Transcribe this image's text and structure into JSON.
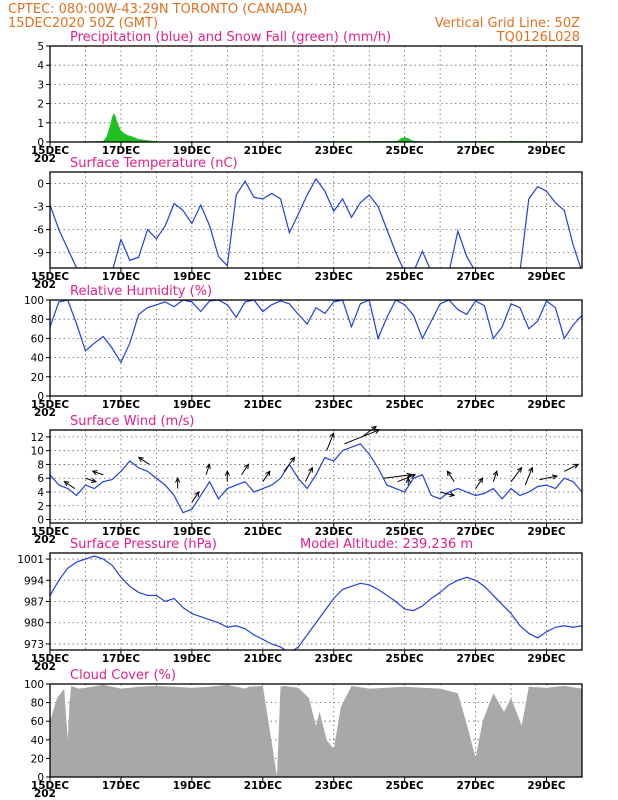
{
  "header": {
    "line1_left": "CPTEC:    080:00W-43:29N   TORONTO (CANADA)",
    "line2_left": "15DEC2020 50Z (GMT)",
    "line1_right": "Vertical Grid Line: 50Z",
    "line2_right": "TQ0126L028"
  },
  "x_tick_labels": [
    "15DEC",
    "17DEC",
    "19DEC",
    "21DEC",
    "23DEC",
    "25DEC",
    "27DEC",
    "29DEC"
  ],
  "x_sublabel": "202",
  "colors": {
    "header": "#e07020",
    "title": "#e0208a",
    "line": "#2040e0",
    "snow": "#20c020",
    "cloud": "#a8a8a8",
    "arrow": "#000000"
  },
  "chart_data": [
    {
      "id": "precip",
      "type": "area",
      "title": "Precipitation (blue) and Snow Fall (green) (mm/h)",
      "ylim": [
        0,
        5
      ],
      "yticks": [
        0,
        1,
        2,
        3,
        4,
        5
      ],
      "x": [
        0,
        1.5,
        1.6,
        1.7,
        1.75,
        1.8,
        1.85,
        1.9,
        2.0,
        2.1,
        2.2,
        2.3,
        2.5,
        2.8,
        3.0,
        5.0,
        9.8,
        9.9,
        10.0,
        10.1,
        10.2,
        10.5,
        13.5,
        13.7,
        15.0
      ],
      "series": [
        {
          "name": "Snow Fall",
          "color": "#20c020",
          "values": [
            0,
            0.05,
            0.3,
            0.9,
            1.3,
            1.5,
            1.35,
            1.0,
            0.6,
            0.45,
            0.35,
            0.3,
            0.15,
            0.08,
            0.03,
            0.03,
            0.05,
            0.2,
            0.25,
            0.2,
            0.08,
            0.03,
            0.05,
            0.04,
            0
          ]
        }
      ]
    },
    {
      "id": "temp",
      "type": "line",
      "title": "Surface Temperature (nC)",
      "ylim": [
        -11,
        1.5
      ],
      "yticks": [
        0,
        -3,
        -6,
        -9
      ],
      "x": [
        0,
        0.25,
        0.5,
        0.75,
        1.0,
        1.25,
        1.5,
        1.75,
        2.0,
        2.25,
        2.5,
        2.75,
        3.0,
        3.25,
        3.5,
        3.75,
        4.0,
        4.25,
        4.5,
        4.75,
        5.0,
        5.25,
        5.5,
        5.75,
        6.0,
        6.25,
        6.5,
        6.75,
        7.0,
        7.25,
        7.5,
        7.75,
        8.0,
        8.25,
        8.5,
        8.75,
        9.0,
        9.25,
        9.5,
        9.75,
        10.0,
        10.25,
        10.5,
        10.75,
        11.0,
        11.25,
        11.5,
        11.75,
        12.0,
        12.25,
        12.5,
        12.75,
        13.0,
        13.25,
        13.5,
        13.75,
        14.0,
        14.25,
        14.5,
        14.75,
        15.0
      ],
      "series": [
        {
          "name": "",
          "values": [
            -2.8,
            -6.0,
            -8.5,
            -11.0,
            -11.5,
            -11.5,
            -11.5,
            -11.5,
            -7.3,
            -10.0,
            -9.6,
            -6.0,
            -7.2,
            -5.5,
            -2.6,
            -3.5,
            -5.2,
            -2.8,
            -5.5,
            -9.5,
            -10.7,
            -1.5,
            0.3,
            -1.8,
            -2.0,
            -1.3,
            -2.0,
            -6.4,
            -4.0,
            -1.5,
            0.6,
            -1.0,
            -3.6,
            -2.0,
            -4.4,
            -2.5,
            -1.5,
            -3.0,
            -6.0,
            -9.0,
            -11.5,
            -11.5,
            -8.8,
            -11.5,
            -11.5,
            -11.5,
            -6.2,
            -9.5,
            -11.5,
            -11.5,
            -11.5,
            -11.5,
            -11.5,
            -11.5,
            -2.0,
            -0.4,
            -1.0,
            -2.5,
            -3.5,
            -8.0,
            -11.5
          ]
        }
      ]
    },
    {
      "id": "rh",
      "type": "line",
      "title": "Relative Humidity (%)",
      "ylim": [
        0,
        100
      ],
      "yticks": [
        0,
        20,
        40,
        60,
        80,
        100
      ],
      "x": [
        0,
        0.25,
        0.5,
        0.75,
        1.0,
        1.25,
        1.5,
        1.75,
        2.0,
        2.25,
        2.5,
        2.75,
        3.0,
        3.25,
        3.5,
        3.75,
        4.0,
        4.25,
        4.5,
        4.75,
        5.0,
        5.25,
        5.5,
        5.75,
        6.0,
        6.25,
        6.5,
        6.75,
        7.0,
        7.25,
        7.5,
        7.75,
        8.0,
        8.25,
        8.5,
        8.75,
        9.0,
        9.25,
        9.5,
        9.75,
        10.0,
        10.25,
        10.5,
        10.75,
        11.0,
        11.25,
        11.5,
        11.75,
        12.0,
        12.25,
        12.5,
        12.75,
        13.0,
        13.25,
        13.5,
        13.75,
        14.0,
        14.25,
        14.5,
        14.75,
        15.0
      ],
      "series": [
        {
          "name": "",
          "values": [
            72,
            98,
            100,
            75,
            47,
            55,
            62,
            50,
            35,
            55,
            85,
            92,
            95,
            98,
            93,
            100,
            98,
            88,
            99,
            100,
            95,
            82,
            98,
            100,
            88,
            95,
            99,
            96,
            85,
            75,
            92,
            86,
            98,
            100,
            72,
            96,
            100,
            60,
            82,
            100,
            95,
            84,
            60,
            78,
            96,
            100,
            90,
            85,
            99,
            94,
            60,
            72,
            96,
            92,
            70,
            78,
            99,
            92,
            60,
            74,
            84
          ]
        }
      ]
    },
    {
      "id": "wind",
      "type": "line",
      "title": "Surface Wind (m/s)",
      "ylim": [
        -0.5,
        13
      ],
      "yticks": [
        0,
        2,
        4,
        6,
        8,
        10,
        12
      ],
      "x": [
        0,
        0.25,
        0.5,
        0.75,
        1.0,
        1.25,
        1.5,
        1.75,
        2.0,
        2.25,
        2.5,
        2.75,
        3.0,
        3.25,
        3.5,
        3.75,
        4.0,
        4.25,
        4.5,
        4.75,
        5.0,
        5.25,
        5.5,
        5.75,
        6.0,
        6.25,
        6.5,
        6.75,
        7.0,
        7.25,
        7.5,
        7.75,
        8.0,
        8.25,
        8.5,
        8.75,
        9.0,
        9.25,
        9.5,
        9.75,
        10.0,
        10.25,
        10.5,
        10.75,
        11.0,
        11.25,
        11.5,
        11.75,
        12.0,
        12.25,
        12.5,
        12.75,
        13.0,
        13.25,
        13.5,
        13.75,
        14.0,
        14.25,
        14.5,
        14.75,
        15.0
      ],
      "series": [
        {
          "name": "",
          "values": [
            6.5,
            5.0,
            4.5,
            3.5,
            5.0,
            4.5,
            5.5,
            5.8,
            7.0,
            8.5,
            7.5,
            7.0,
            6.0,
            5.0,
            3.5,
            1.0,
            1.5,
            3.5,
            5.5,
            3.0,
            4.5,
            5.0,
            5.5,
            4.0,
            4.5,
            5.0,
            6.0,
            8.0,
            6.0,
            4.5,
            6.5,
            9.0,
            8.5,
            10.0,
            10.5,
            11.0,
            9.5,
            7.5,
            5.0,
            4.5,
            4.0,
            6.0,
            6.5,
            3.5,
            3.0,
            4.0,
            4.5,
            4.0,
            3.5,
            3.8,
            4.5,
            3.0,
            4.5,
            3.5,
            4.0,
            4.8,
            5.0,
            4.5,
            6.0,
            5.5,
            4.0
          ]
        }
      ],
      "vectors": {
        "description": "wind direction arrows",
        "days": [
          0.7,
          1.0,
          1.5,
          2.8,
          3.6,
          4.0,
          4.4,
          5.0,
          5.4,
          6.0,
          6.6,
          7.2,
          7.8,
          8.3,
          8.8,
          9.4,
          9.8,
          10.1,
          11.0,
          11.4,
          12.0,
          12.5,
          13.0,
          13.4,
          13.8,
          14.5
        ],
        "u": [
          -3,
          3,
          -3,
          -3,
          0,
          2,
          1,
          0,
          2,
          2,
          3,
          2,
          2,
          10,
          4,
          8,
          5,
          0,
          4,
          -2,
          2,
          1,
          3,
          2,
          5,
          4
        ],
        "v": [
          2,
          -1,
          1,
          2,
          3,
          3,
          3,
          3,
          3,
          3,
          4,
          4,
          5,
          4,
          3,
          1,
          2,
          2,
          -1,
          3,
          3,
          3,
          4,
          5,
          1,
          2
        ]
      }
    },
    {
      "id": "pressure",
      "type": "line",
      "title": "Surface Pressure (hPa)",
      "subtitle": "Model Altitude: 239.236 m",
      "ylim": [
        971,
        1003
      ],
      "yticks": [
        973,
        980,
        987,
        994,
        1001
      ],
      "x": [
        0,
        0.25,
        0.5,
        0.75,
        1.0,
        1.25,
        1.5,
        1.75,
        2.0,
        2.25,
        2.5,
        2.75,
        3.0,
        3.25,
        3.5,
        3.75,
        4.0,
        4.25,
        4.5,
        4.75,
        5.0,
        5.25,
        5.5,
        5.75,
        6.0,
        6.25,
        6.5,
        6.75,
        7.0,
        7.25,
        7.5,
        7.75,
        8.0,
        8.25,
        8.5,
        8.75,
        9.0,
        9.25,
        9.5,
        9.75,
        10.0,
        10.25,
        10.5,
        10.75,
        11.0,
        11.25,
        11.5,
        11.75,
        12.0,
        12.25,
        12.5,
        12.75,
        13.0,
        13.25,
        13.5,
        13.75,
        14.0,
        14.25,
        14.5,
        14.75,
        15.0
      ],
      "series": [
        {
          "name": "",
          "values": [
            989,
            994,
            998,
            1000,
            1001,
            1002,
            1001,
            999,
            995,
            992,
            990,
            989,
            989,
            987,
            988,
            985,
            983,
            982,
            981,
            980,
            978.5,
            979,
            978,
            976,
            974.5,
            973,
            972,
            970,
            972,
            976,
            980,
            984,
            988,
            991,
            992,
            993,
            992.5,
            991,
            989,
            987,
            984.5,
            984,
            985.5,
            988,
            990,
            992.5,
            994,
            995,
            994,
            992,
            989,
            986,
            983,
            979,
            976.5,
            975,
            977,
            978.5,
            979,
            978.5,
            979
          ]
        }
      ]
    },
    {
      "id": "cloud",
      "type": "area",
      "title": "Cloud Cover (%)",
      "ylim": [
        0,
        100
      ],
      "yticks": [
        0,
        20,
        40,
        60,
        80,
        100
      ],
      "x": [
        0,
        0.2,
        0.4,
        0.5,
        0.55,
        0.6,
        0.8,
        1.0,
        1.5,
        2.0,
        2.5,
        3.0,
        3.5,
        4.0,
        4.5,
        5.0,
        5.5,
        5.6,
        6.0,
        6.4,
        6.5,
        6.6,
        7.0,
        7.3,
        7.5,
        7.6,
        7.8,
        8.0,
        8.2,
        8.5,
        9.0,
        9.5,
        10.0,
        10.5,
        11.0,
        11.5,
        11.8,
        12.0,
        12.2,
        12.5,
        12.8,
        13.0,
        13.3,
        13.5,
        14.0,
        14.5,
        15.0
      ],
      "series": [
        {
          "name": "Cloud Cover",
          "color": "#a8a8a8",
          "values": [
            60,
            85,
            95,
            40,
            80,
            98,
            95,
            96,
            99,
            95,
            97,
            98,
            97,
            96,
            97,
            99,
            95,
            97,
            98,
            1,
            97,
            98,
            96,
            85,
            55,
            70,
            40,
            30,
            75,
            98,
            95,
            96,
            97,
            96,
            95,
            90,
            50,
            20,
            60,
            90,
            70,
            85,
            55,
            97,
            96,
            98,
            95
          ]
        }
      ]
    }
  ]
}
